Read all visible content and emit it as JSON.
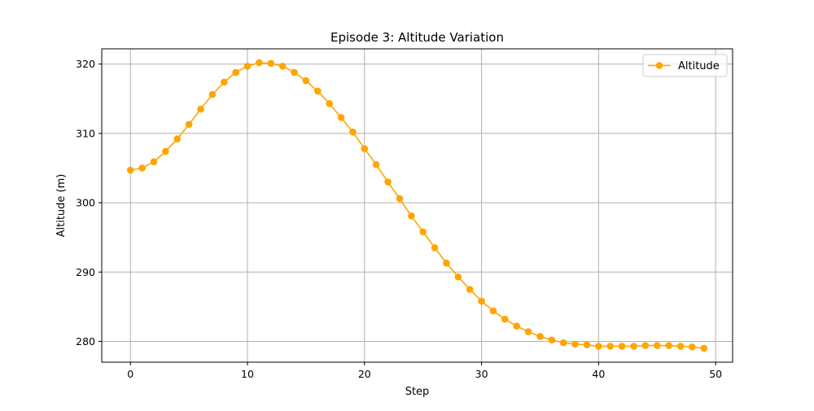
{
  "chart_data": {
    "type": "line",
    "title": "Episode 3: Altitude Variation",
    "xlabel": "Step",
    "ylabel": "Altitude (m)",
    "xlim": [
      -2.45,
      51.45
    ],
    "ylim": [
      277.0,
      322.2
    ],
    "xticks": [
      0,
      10,
      20,
      30,
      40,
      50
    ],
    "yticks": [
      280,
      290,
      300,
      310,
      320
    ],
    "grid": true,
    "legend": {
      "position": "top-right"
    },
    "series": [
      {
        "name": "Altitude",
        "color": "#ffa500",
        "marker": "circle",
        "x": [
          0,
          1,
          2,
          3,
          4,
          5,
          6,
          7,
          8,
          9,
          10,
          11,
          12,
          13,
          14,
          15,
          16,
          17,
          18,
          19,
          20,
          21,
          22,
          23,
          24,
          25,
          26,
          27,
          28,
          29,
          30,
          31,
          32,
          33,
          34,
          35,
          36,
          37,
          38,
          39,
          40,
          41,
          42,
          43,
          44,
          45,
          46,
          47,
          48,
          49
        ],
        "values": [
          304.7,
          305.0,
          305.9,
          307.4,
          309.2,
          311.3,
          313.5,
          315.6,
          317.4,
          318.8,
          319.7,
          320.2,
          320.1,
          319.7,
          318.8,
          317.6,
          316.1,
          314.3,
          312.3,
          310.2,
          307.8,
          305.5,
          303.0,
          300.6,
          298.1,
          295.8,
          293.5,
          291.3,
          289.3,
          287.5,
          285.8,
          284.4,
          283.2,
          282.2,
          281.4,
          280.7,
          280.2,
          279.8,
          279.6,
          279.5,
          279.3,
          279.3,
          279.3,
          279.3,
          279.4,
          279.4,
          279.4,
          279.3,
          279.2,
          279.0
        ]
      }
    ]
  }
}
